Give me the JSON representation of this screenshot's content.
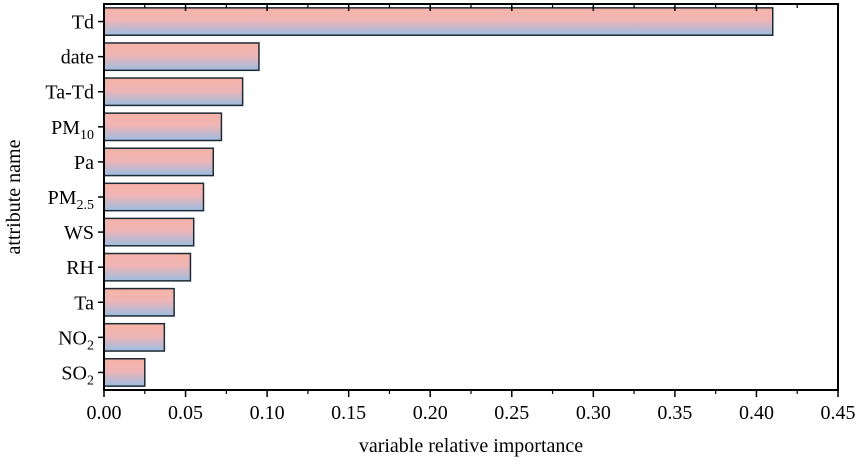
{
  "chart_data": {
    "type": "bar",
    "orientation": "horizontal",
    "xlabel": "variable relative importance",
    "ylabel": "attribute name",
    "xlim": [
      0,
      0.45
    ],
    "x_ticks": [
      "0.00",
      "0.05",
      "0.10",
      "0.15",
      "0.20",
      "0.25",
      "0.30",
      "0.35",
      "0.40",
      "0.45"
    ],
    "grid": false,
    "colors": {
      "bar_top": "#f6b3a6",
      "bar_bottom": "#9cbde0",
      "bar_edge": "#1f2a36"
    },
    "categories": [
      {
        "base": "Td",
        "sub": ""
      },
      {
        "base": "date",
        "sub": ""
      },
      {
        "base": "Ta-Td",
        "sub": ""
      },
      {
        "base": "PM",
        "sub": "10"
      },
      {
        "base": "Pa",
        "sub": ""
      },
      {
        "base": "PM",
        "sub": "2.5"
      },
      {
        "base": "WS",
        "sub": ""
      },
      {
        "base": "RH",
        "sub": ""
      },
      {
        "base": "Ta",
        "sub": ""
      },
      {
        "base": "NO",
        "sub": "2"
      },
      {
        "base": "SO",
        "sub": "2"
      }
    ],
    "values": [
      0.41,
      0.095,
      0.085,
      0.072,
      0.067,
      0.061,
      0.055,
      0.053,
      0.043,
      0.037,
      0.025
    ]
  }
}
